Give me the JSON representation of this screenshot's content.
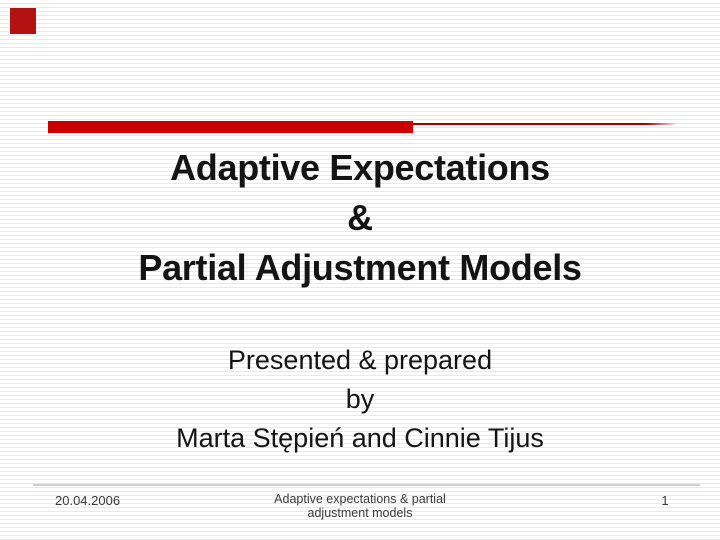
{
  "slide": {
    "title_lines": [
      "Adaptive Expectations",
      "&",
      "Partial Adjustment Models"
    ],
    "subtitle_lines": [
      "Presented & prepared",
      "by",
      "Marta Stępień and Cinnie Tijus"
    ],
    "footer": {
      "date": "20.04.2006",
      "caption_lines": [
        "Adaptive expectations & partial",
        "adjustment models"
      ],
      "page_number": "1"
    }
  },
  "colors": {
    "accent_red": "#cc0000",
    "corner_red": "#b31212",
    "rule_red": "#a80000",
    "stripe_gray": "#e9e9e9",
    "divider": "#d6cad3",
    "title_text": "#141414",
    "footer_text": "#3a3a3a"
  }
}
